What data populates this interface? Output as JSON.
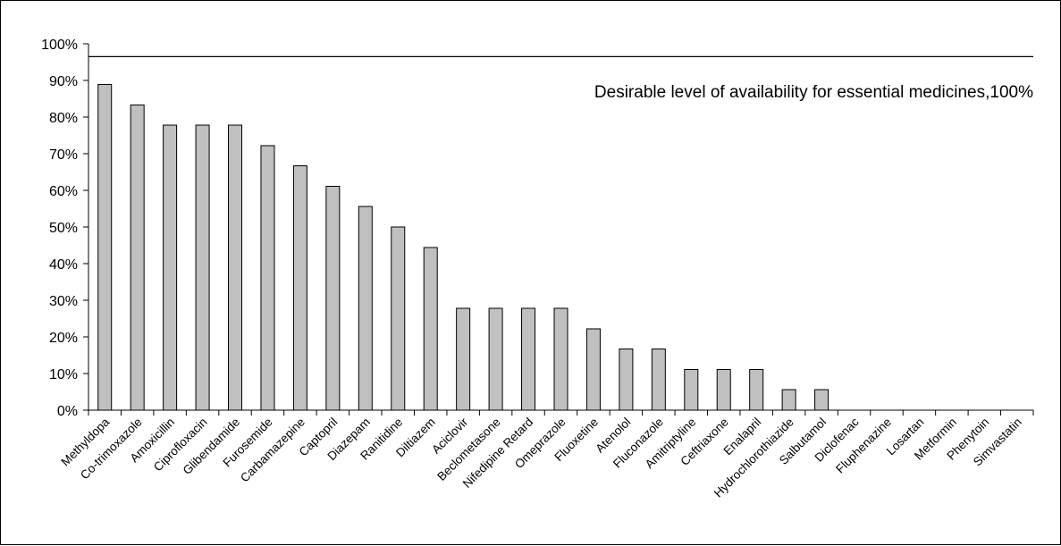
{
  "chart_data": {
    "type": "bar",
    "categories": [
      "Methyldopa",
      "Co-trimoxazole",
      "Amoxicillin",
      "Ciprofloxacin",
      "Glibendamide",
      "Furosemide",
      "Carbamazepine",
      "Captopril",
      "Diazepam",
      "Ranitidine",
      "Diltiazem",
      "Aciclovir",
      "Beclometasone",
      "Nifedipine Retard",
      "Omeprazole",
      "Fluoxetine",
      "Atenolol",
      "Fluconazole",
      "Amitriptyline",
      "Ceftriaxone",
      "Enalapril",
      "Hydrochlorothiazide",
      "Salbutamol",
      "Diclofenac",
      "Fluphenazine",
      "Losartan",
      "Metformin",
      "Phenytoin",
      "Simvastatin"
    ],
    "values": [
      88.9,
      83.3,
      77.8,
      77.8,
      77.8,
      72.2,
      66.7,
      61.1,
      55.6,
      50.0,
      44.4,
      27.8,
      27.8,
      27.8,
      27.8,
      22.2,
      16.7,
      16.7,
      11.1,
      11.1,
      11.1,
      5.6,
      5.6,
      0,
      0,
      0,
      0,
      0,
      0
    ],
    "ylim": [
      0,
      100
    ],
    "yticks": [
      "0%",
      "10%",
      "20%",
      "30%",
      "40%",
      "50%",
      "60%",
      "70%",
      "80%",
      "90%",
      "100%"
    ],
    "reference_line": {
      "value": 96.5
    },
    "annotation": "Desirable level of availability for essential medicines,100%",
    "bar_color": "#c0c0c0",
    "title": "",
    "xlabel": "",
    "ylabel": "",
    "grid": false,
    "legend": "none"
  }
}
